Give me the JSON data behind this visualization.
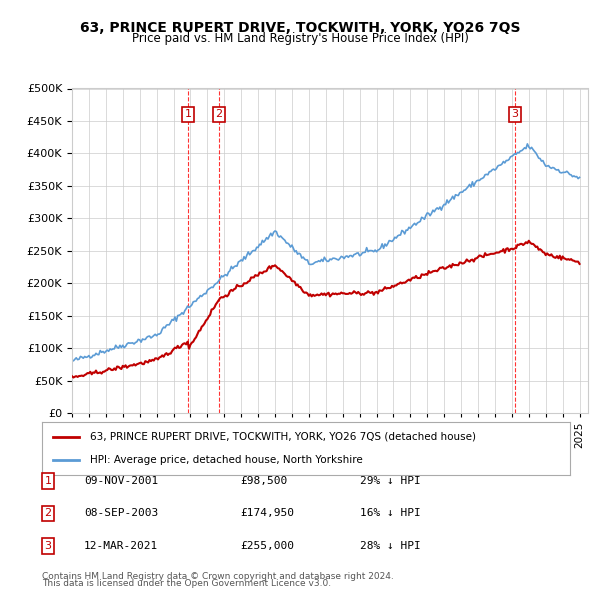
{
  "title": "63, PRINCE RUPERT DRIVE, TOCKWITH, YORK, YO26 7QS",
  "subtitle": "Price paid vs. HM Land Registry's House Price Index (HPI)",
  "legend_line1": "63, PRINCE RUPERT DRIVE, TOCKWITH, YORK, YO26 7QS (detached house)",
  "legend_line2": "HPI: Average price, detached house, North Yorkshire",
  "footer1": "Contains HM Land Registry data © Crown copyright and database right 2024.",
  "footer2": "This data is licensed under the Open Government Licence v3.0.",
  "transactions": [
    {
      "num": 1,
      "date": "09-NOV-2001",
      "price": "£98,500",
      "pct": "29% ↓ HPI",
      "year": 2001.86
    },
    {
      "num": 2,
      "date": "08-SEP-2003",
      "price": "£174,950",
      "pct": "16% ↓ HPI",
      "year": 2003.69
    },
    {
      "num": 3,
      "date": "12-MAR-2021",
      "price": "£255,000",
      "pct": "28% ↓ HPI",
      "year": 2021.19
    }
  ],
  "transaction_values": [
    98500,
    174950,
    255000
  ],
  "ylim": [
    0,
    500000
  ],
  "yticks": [
    0,
    50000,
    100000,
    150000,
    200000,
    250000,
    300000,
    350000,
    400000,
    450000,
    500000
  ],
  "hpi_color": "#5b9bd5",
  "sale_color": "#c00000",
  "vline_color": "#ff0000",
  "background_color": "#ffffff",
  "grid_color": "#cccccc"
}
